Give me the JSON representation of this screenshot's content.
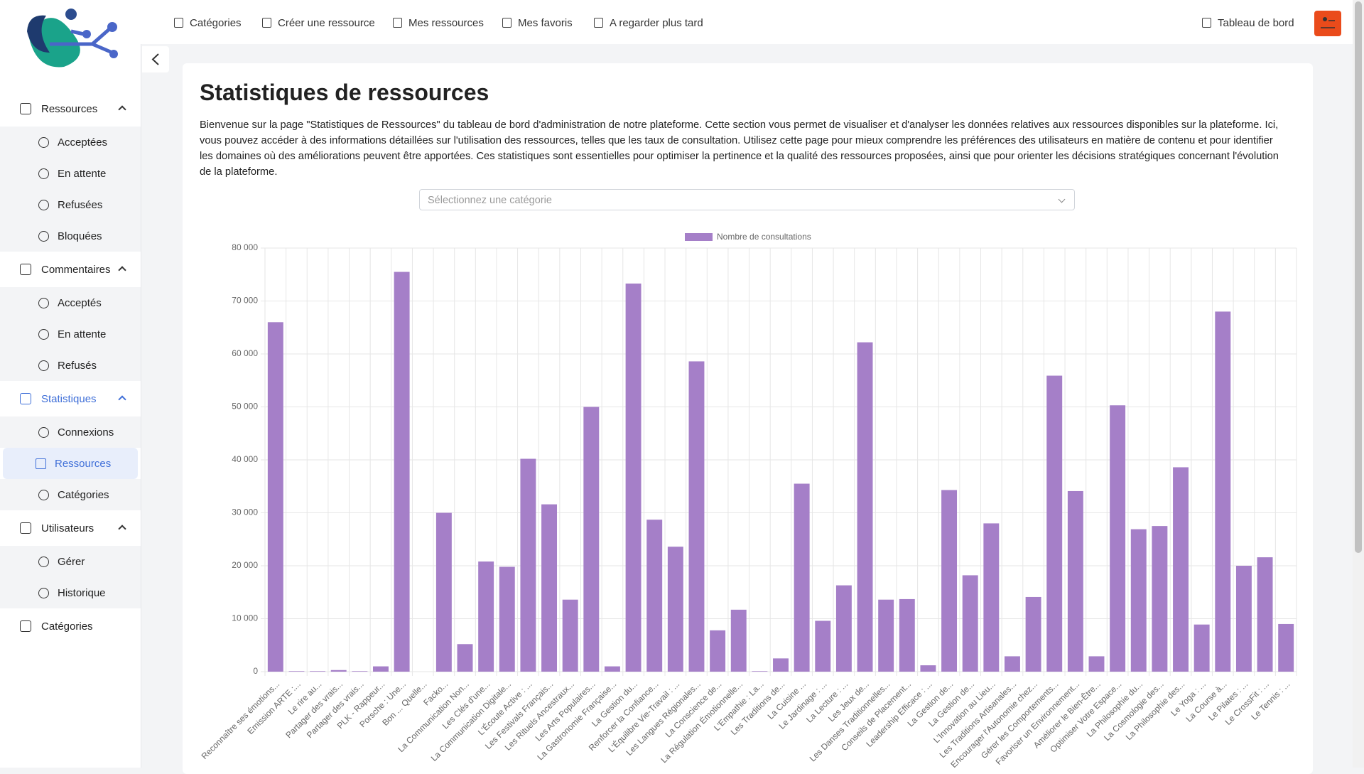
{
  "nav": {
    "items": [
      "Catégories",
      "Créer une ressource",
      "Mes ressources",
      "Mes favoris",
      "A regarder plus tard"
    ],
    "dashboard": "Tableau de bord"
  },
  "sidebar": {
    "sections": [
      {
        "label": "Ressources",
        "items": [
          "Acceptées",
          "En attente",
          "Refusées",
          "Bloquées"
        ]
      },
      {
        "label": "Commentaires",
        "items": [
          "Acceptés",
          "En attente",
          "Refusés"
        ]
      },
      {
        "label": "Statistiques",
        "items": [
          "Connexions",
          "Ressources",
          "Catégories"
        ]
      },
      {
        "label": "Utilisateurs",
        "items": [
          "Gérer",
          "Historique"
        ]
      }
    ],
    "link": "Catégories"
  },
  "page": {
    "title": "Statistiques de ressources",
    "intro": "Bienvenue sur la page \"Statistiques de Ressources\" du tableau de bord d'administration de notre plateforme. Cette section vous permet de visualiser et d'analyser les données relatives aux ressources disponibles sur la plateforme. Ici, vous pouvez accéder à des informations détaillées sur l'utilisation des ressources, telles que les taux de consultation. Utilisez cette page pour mieux comprendre les préférences des utilisateurs en matière de contenu et pour identifier les domaines où des améliorations peuvent être apportées. Ces statistiques sont essentielles pour optimiser la pertinence et la qualité des ressources proposées, ainsi que pour orienter les décisions stratégiques concernant l'évolution de la plateforme.",
    "select_placeholder": "Sélectionnez une catégorie"
  },
  "chart_data": {
    "type": "bar",
    "categories": [
      "Reconnaître ses émotions...",
      "Emission ARTE :...",
      "Le rire au...",
      "Partager des vrais...",
      "Partager des vrais...",
      "PLK - Rappeur...",
      "Porsche : Une...",
      "Bon ... Quelle...",
      "Facko...",
      "La Communication Non...",
      "Les Clés d'une...",
      "La Communication Digitale...",
      "L'Écoute Active : ...",
      "Les Festivals Français...",
      "Les Rituels Ancestraux...",
      "Les Arts Populaires...",
      "La Gastronomie Française...",
      "La Gestion du...",
      "Renforcer la Confiance...",
      "L'Équilibre Vie-Travail : ...",
      "Les Langues Régionales...",
      "La Conscience de...",
      "La Régulation Émotionnelle...",
      "L'Empathie : La...",
      "Les Traditions de...",
      "La Cuisine ...",
      "Le Jardinage : ...",
      "La Lecture : ...",
      "Les Jeux de...",
      "Les Danses Traditionnelles...",
      "Conseils de Placement...",
      "Leadership Efficace : ...",
      "La Gestion de...",
      "La Gestion de...",
      "L'Innovation au Lieu...",
      "Les Traditions Artisanales...",
      "Encourager l'Autonomie chez...",
      "Gérer les Comportements...",
      "Favoriser un Environnement...",
      "Améliorer le Bien-Être...",
      "Optimiser Votre Espace...",
      "La Philosophie du...",
      "La Cosmologie des...",
      "La Philosophie des...",
      "Le Yoga : ...",
      "La Course à...",
      "Le Pilates : ...",
      "Le CrossFit : ...",
      "Le Tennis : ..."
    ],
    "series": [
      {
        "name": "Nombre de consultations",
        "color": "#a57fc8",
        "values": [
          66000,
          100,
          100,
          300,
          100,
          1000,
          75500,
          0,
          30000,
          5200,
          20800,
          19800,
          40200,
          31600,
          13600,
          50000,
          1000,
          73300,
          28700,
          23600,
          58600,
          7800,
          11700,
          100,
          2500,
          35500,
          9600,
          16300,
          62200,
          13600,
          13700,
          1200,
          34300,
          18200,
          28000,
          2900,
          14100,
          55900,
          34100,
          2900,
          50300,
          26900,
          27500,
          38600,
          8900,
          68000,
          20000,
          21600,
          9000
        ]
      }
    ],
    "ylim": [
      0,
      80000
    ],
    "yticks": [
      0,
      {
        "value": 10000,
        "label": "10 000"
      },
      {
        "value": 20000,
        "label": "20 000"
      },
      {
        "value": 30000,
        "label": "30 000"
      },
      {
        "value": 40000,
        "label": "40 000"
      },
      {
        "value": 50000,
        "label": "50 000"
      },
      {
        "value": 60000,
        "label": "60 000"
      },
      {
        "value": 70000,
        "label": "70 000"
      },
      {
        "value": 80000,
        "label": "80 000"
      }
    ],
    "grid": true,
    "legend": "top"
  }
}
